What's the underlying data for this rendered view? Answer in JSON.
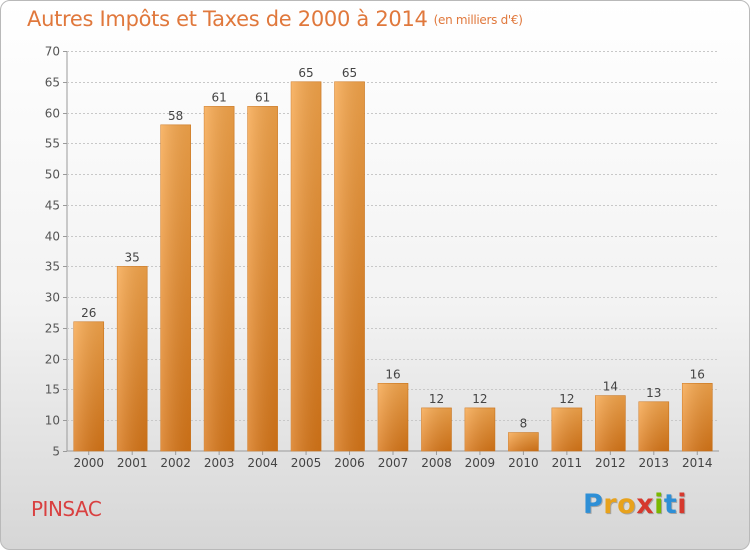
{
  "header": {
    "title": "Autres Impôts et Taxes de 2000 à 2014",
    "unit": "(en milliers d'€)"
  },
  "footer": {
    "place": "PINSAC",
    "logo_letters": [
      "P",
      "r",
      "o",
      "x",
      "i",
      "t",
      "i"
    ],
    "logo_colors": [
      "#2e8fd6",
      "#e8a21c",
      "#e8a21c",
      "#d6392e",
      "#7ab800",
      "#2e8fd6",
      "#d6392e"
    ]
  },
  "chart_data": {
    "type": "bar",
    "categories": [
      "2000",
      "2001",
      "2002",
      "2003",
      "2004",
      "2005",
      "2006",
      "2007",
      "2008",
      "2009",
      "2010",
      "2011",
      "2012",
      "2013",
      "2014"
    ],
    "values": [
      26,
      35,
      58,
      61,
      61,
      65,
      65,
      16,
      12,
      12,
      8,
      12,
      14,
      13,
      16
    ],
    "ylim": [
      5,
      70
    ],
    "yticks": [
      5,
      10,
      15,
      20,
      25,
      30,
      35,
      40,
      45,
      50,
      55,
      60,
      65,
      70
    ],
    "grid": true,
    "bar_color": "#f19a3c"
  }
}
